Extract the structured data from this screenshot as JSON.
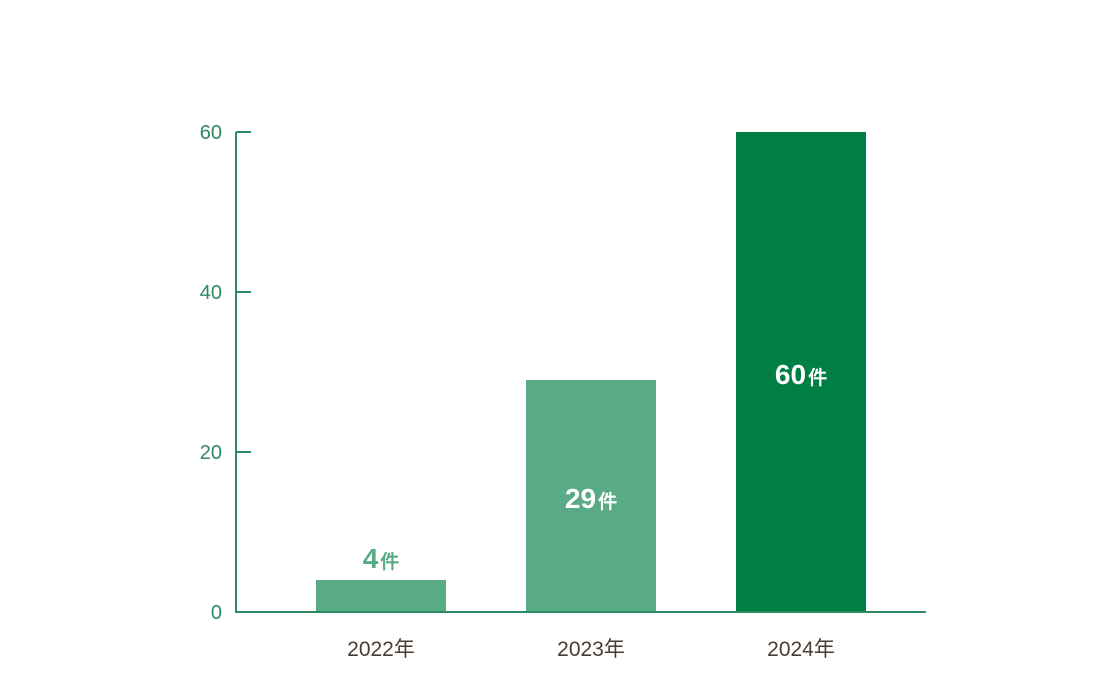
{
  "chart_data": {
    "type": "bar",
    "categories": [
      "2022年",
      "2023年",
      "2024年"
    ],
    "values": [
      4,
      29,
      60
    ],
    "unit": "件",
    "ylim": [
      0,
      60
    ],
    "yticks": [
      0,
      20,
      40,
      60
    ],
    "title": "",
    "xlabel": "",
    "ylabel": "",
    "grid": false,
    "legend": "none",
    "colors": {
      "bars": [
        "#59ab86",
        "#59ab86",
        "#007f45"
      ],
      "axis": "#2e8a62",
      "tick_label": "#2e8a62",
      "category_label": "#4a3c30",
      "label_outside": "#59ab86",
      "label_inside": "#ffffff"
    }
  }
}
